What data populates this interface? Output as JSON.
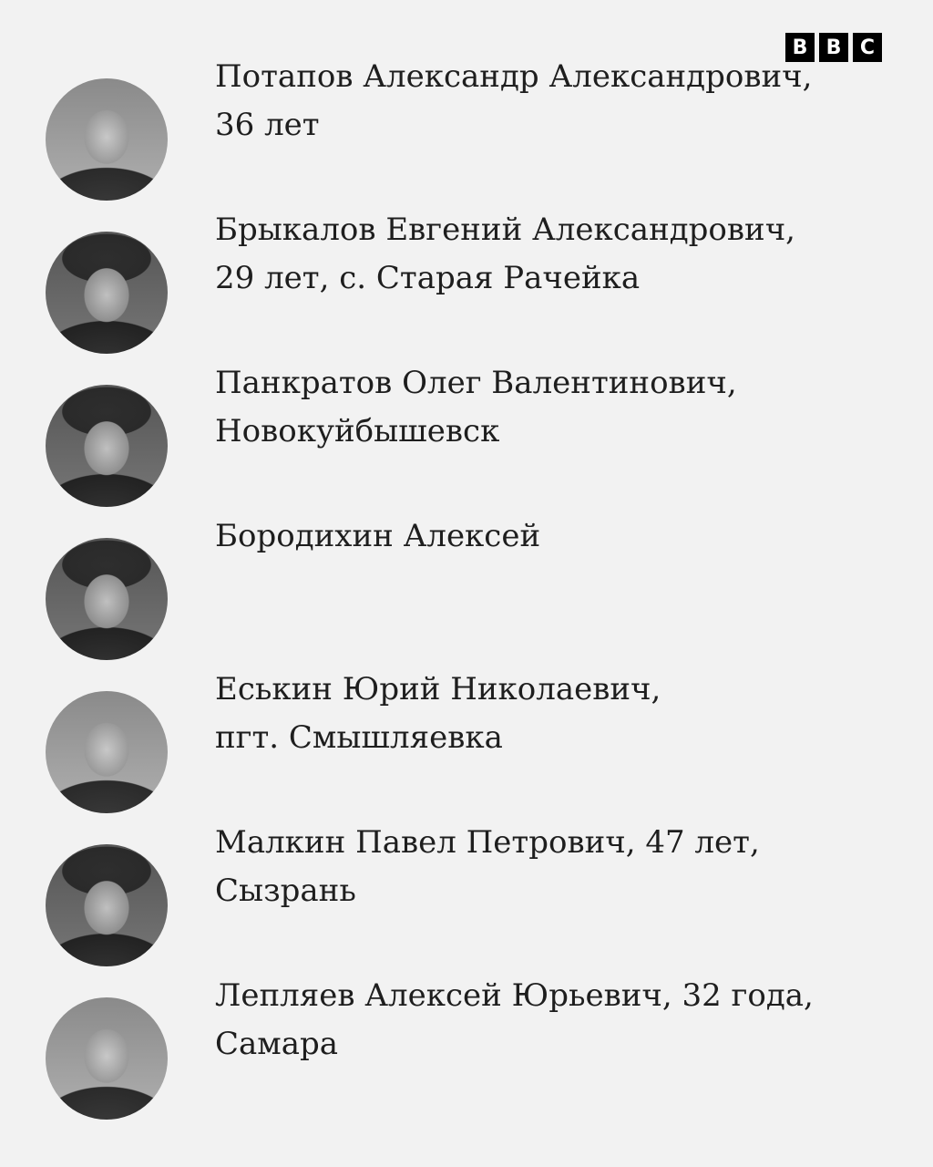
{
  "logo": {
    "letters": [
      "B",
      "B",
      "C"
    ]
  },
  "items": [
    {
      "line1": "Потапов Александр Александрович,",
      "line2": "36 лет"
    },
    {
      "line1": "Брыкалов Евгений Александрович,",
      "line2": "29 лет, с. Старая Рачейка"
    },
    {
      "line1": "Панкратов Олег Валентинович,",
      "line2": "Новокуйбышевск"
    },
    {
      "line1": "Бородихин Алексей",
      "line2": ""
    },
    {
      "line1": "Еськин Юрий Николаевич,",
      "line2": "пгт. Смышляевка"
    },
    {
      "line1": "Малкин Павел Петрович, 47 лет,",
      "line2": "Сызрань"
    },
    {
      "line1": "Лепляев Алексей Юрьевич, 32 года,",
      "line2": "Самара"
    }
  ]
}
